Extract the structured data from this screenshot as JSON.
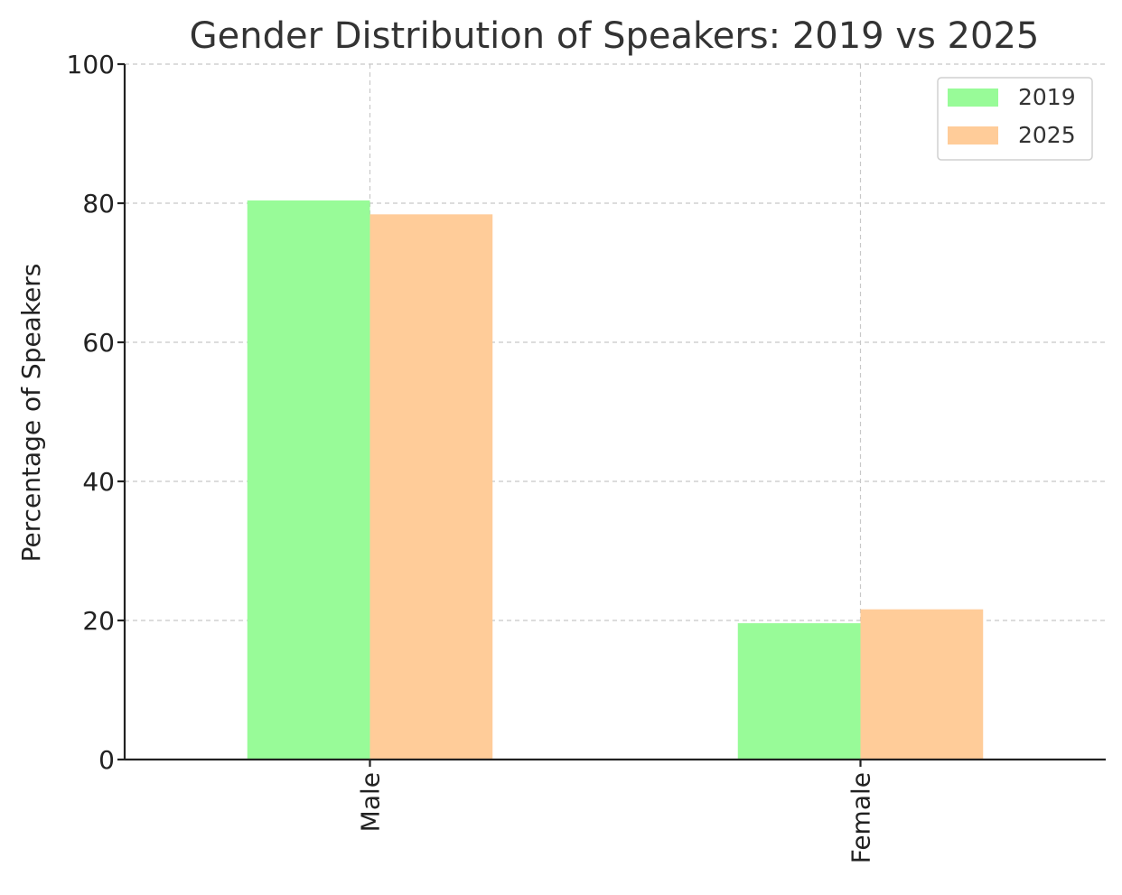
{
  "chart_data": {
    "type": "bar",
    "title": "Gender Distribution of Speakers: 2019 vs 2025",
    "xlabel": "",
    "ylabel": "Percentage of Speakers",
    "categories": [
      "Male",
      "Female"
    ],
    "series": [
      {
        "name": "2019",
        "values": [
          80.4,
          19.6
        ],
        "color": "#98fb98"
      },
      {
        "name": "2025",
        "values": [
          78.4,
          21.6
        ],
        "color": "#ffcc99"
      }
    ],
    "ylim": [
      0,
      100
    ],
    "yticks": [
      0,
      20,
      40,
      60,
      80,
      100
    ],
    "grid": true,
    "legend_position": "top-right"
  }
}
